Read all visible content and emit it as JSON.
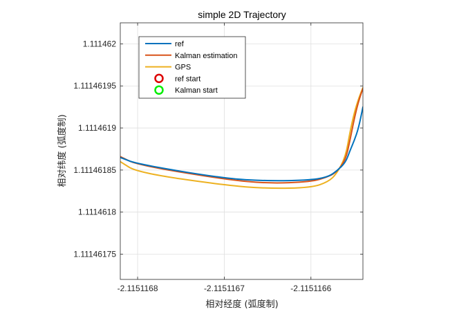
{
  "chart_data": {
    "type": "line",
    "title": "simple 2D Trajectory",
    "xlabel": "相对经度 (弧度制)",
    "ylabel": "相对纬度 (弧度制)",
    "xlim": [
      -2.11511682,
      -2.11511654
    ],
    "ylim": [
      1.11146172,
      1.111462025
    ],
    "xticks": [
      -2.1151168,
      -2.1151167,
      -2.1151166
    ],
    "xtick_labels": [
      "-2.1151168",
      "-2.1151167",
      "-2.1151166"
    ],
    "yticks": [
      1.11146175,
      1.1114618,
      1.11146185,
      1.1114619,
      1.11146195,
      1.111462
    ],
    "ytick_labels": [
      "1.11146175",
      "1.1114618",
      "1.11146185",
      "1.1114619",
      "1.11146195",
      "1.111462"
    ],
    "grid": true,
    "legend_position": "top-left",
    "series": [
      {
        "name": "ref",
        "color": "#0072BD",
        "style": "line",
        "x": [
          -2.11511682,
          -2.1151168,
          -2.1151167,
          -2.11511665,
          -2.1151166,
          -2.11511658,
          -2.11511657,
          -2.11511656,
          -2.115116555,
          -2.11511655,
          -2.115116545,
          -2.11511654
        ],
        "y": [
          1.111461865,
          1.111461857,
          1.11146184,
          1.111461837,
          1.111461838,
          1.111461842,
          1.111461849,
          1.111461859,
          1.111461873,
          1.111461885,
          1.1114619,
          1.111461925
        ]
      },
      {
        "name": "Kalman estimation",
        "color": "#D95319",
        "style": "line",
        "x": [
          -2.11511682,
          -2.1151168,
          -2.1151167,
          -2.11511665,
          -2.1151166,
          -2.11511658,
          -2.11511657,
          -2.11511656,
          -2.115116555,
          -2.11511655,
          -2.115116545,
          -2.11511654
        ],
        "y": [
          1.111461866,
          1.111461856,
          1.111461839,
          1.111461834,
          1.111461836,
          1.111461842,
          1.111461848,
          1.111461862,
          1.111461885,
          1.111461911,
          1.111461932,
          1.111461947
        ]
      },
      {
        "name": "GPS",
        "color": "#EDB120",
        "style": "line",
        "x": [
          -2.11511682,
          -2.1151168,
          -2.1151167,
          -2.11511665,
          -2.1151166,
          -2.11511658,
          -2.11511657,
          -2.11511656,
          -2.115116555,
          -2.11511655,
          -2.115116545,
          -2.11511654
        ],
        "y": [
          1.11146186,
          1.111461847,
          1.111461832,
          1.111461828,
          1.111461829,
          1.111461836,
          1.111461846,
          1.111461866,
          1.111461895,
          1.111461918,
          1.111461935,
          1.111461948
        ]
      },
      {
        "name": "ref start",
        "color": "#DD0000",
        "style": "marker",
        "marker": "circle",
        "x": [],
        "y": []
      },
      {
        "name": "Kalman start",
        "color": "#00EE00",
        "style": "marker",
        "marker": "circle",
        "x": [],
        "y": []
      }
    ]
  }
}
